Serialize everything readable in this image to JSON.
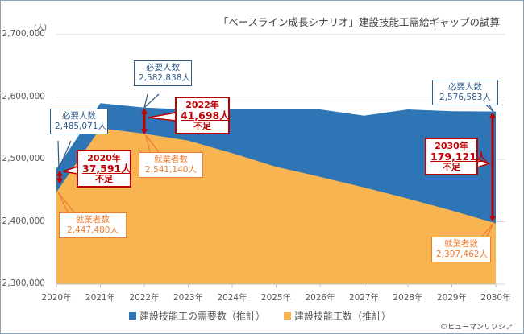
{
  "title": "「ベースライン成長シナリオ」建設技能工需給ギャップの試算",
  "credit": "©ヒューマンリソシア",
  "chart_data": {
    "type": "area",
    "title": "「ベースライン成長シナリオ」建設技能工需給ギャップの試算",
    "ylabel": "(人)",
    "xlabel": "",
    "ylim": [
      2300000,
      2700000
    ],
    "yticks": [
      2300000,
      2400000,
      2500000,
      2600000,
      2700000
    ],
    "ytick_labels": [
      "2,300,000",
      "2,400,000",
      "2,500,000",
      "2,600,000",
      "2,700,000"
    ],
    "grid": true,
    "legend_position": "bottom",
    "categories": [
      "2020年",
      "2021年",
      "2022年",
      "2023年",
      "2024年",
      "2025年",
      "2026年",
      "2027年",
      "2028年",
      "2029年",
      "2030年"
    ],
    "series": [
      {
        "name": "建設技能工の需要数（推計）",
        "color": "#2e75b6",
        "values": [
          2485071,
          2590000,
          2582838,
          2580000,
          2580000,
          2580000,
          2580000,
          2570000,
          2580000,
          2577000,
          2576583
        ]
      },
      {
        "name": "建設技能工数（推計）",
        "color": "#f8b450",
        "values": [
          2447480,
          2550000,
          2541140,
          2530000,
          2510000,
          2488000,
          2472000,
          2455000,
          2437000,
          2418000,
          2397462
        ]
      }
    ],
    "annotations": [
      {
        "kind": "demand",
        "year_index": 0,
        "label": "必要人数",
        "value": "2,485,071人"
      },
      {
        "kind": "demand",
        "year_index": 2,
        "label": "必要人数",
        "value": "2,582,838人"
      },
      {
        "kind": "demand",
        "year_index": 10,
        "label": "必要人数",
        "value": "2,576,583人"
      },
      {
        "kind": "supply",
        "year_index": 0,
        "label": "就業者数",
        "value": "2,447,480人"
      },
      {
        "kind": "supply",
        "year_index": 2,
        "label": "就業者数",
        "value": "2,541,140人"
      },
      {
        "kind": "supply",
        "year_index": 10,
        "label": "就業者数",
        "value": "2,397,462人"
      },
      {
        "kind": "gap",
        "year_index": 0,
        "year": "2020年",
        "value": "37,591人",
        "note": "不足"
      },
      {
        "kind": "gap",
        "year_index": 2,
        "year": "2022年",
        "value": "41,698人",
        "note": "不足"
      },
      {
        "kind": "gap",
        "year_index": 10,
        "year": "2030年",
        "value": "179,121人",
        "note": "不足"
      }
    ]
  }
}
